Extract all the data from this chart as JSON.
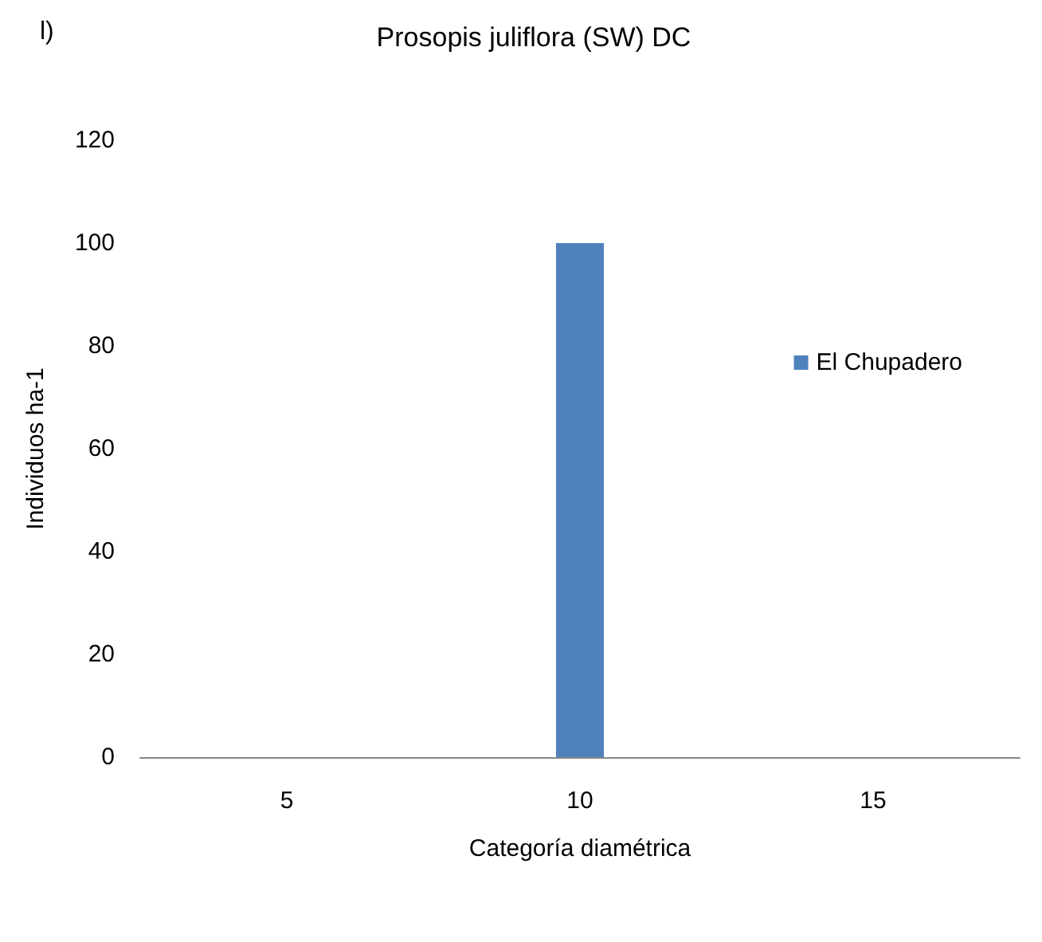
{
  "chart_data": {
    "type": "bar",
    "title": "Prosopis juliflora (SW) DC",
    "annotations": [
      "l)"
    ],
    "xlabel": "Categoría diamétrica",
    "ylabel": "Individuos ha-1",
    "categories": [
      "5",
      "10",
      "15"
    ],
    "series": [
      {
        "name": "El Chupadero",
        "color": "#4f81bd",
        "values": [
          0,
          100,
          0
        ]
      }
    ],
    "ylim": [
      0,
      120
    ],
    "yticks": [
      0,
      20,
      40,
      60,
      80,
      100,
      120
    ],
    "grid": false,
    "legend": "right"
  }
}
